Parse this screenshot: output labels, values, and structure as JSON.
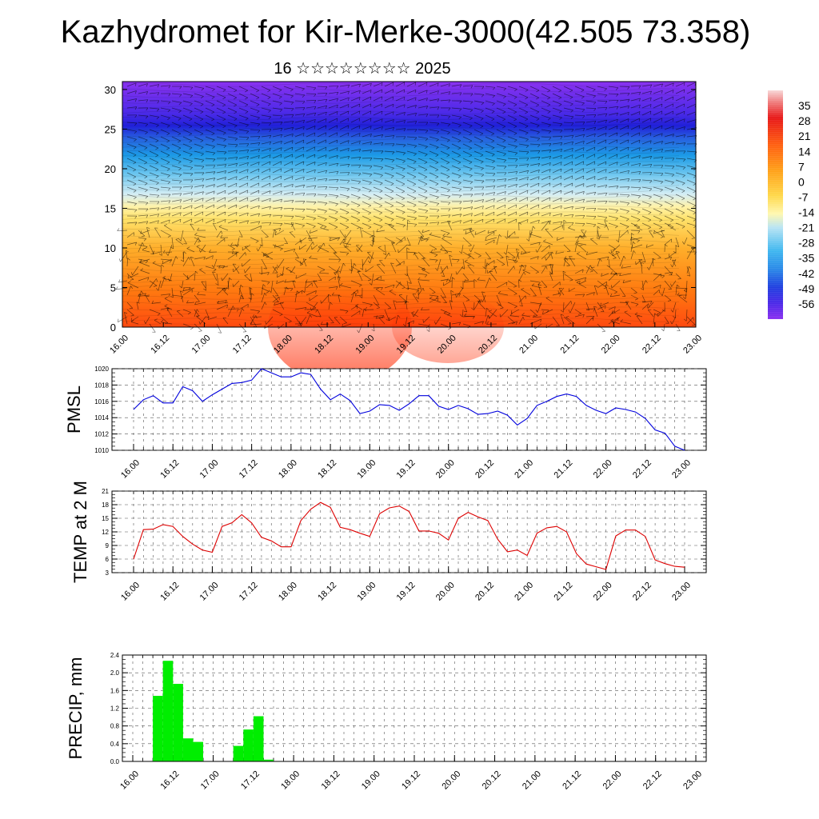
{
  "title": "Kazhydromet for Kir-Merke-3000(42.505 73.358)",
  "subtitle": "16 ☆☆☆☆☆☆☆☆ 2025",
  "chart_data": [
    {
      "type": "heatmap",
      "y_ticks": [
        "0",
        "5",
        "10",
        "15",
        "20",
        "25",
        "30"
      ],
      "x_ticks": [
        "16.00",
        "16.12",
        "17.00",
        "17.12",
        "18.00",
        "18.12",
        "19.00",
        "19.12",
        "20.00",
        "20.12",
        "21.00",
        "21.12",
        "22.00",
        "22.12",
        "23.00"
      ],
      "ylim": [
        0,
        31
      ],
      "colorbar_labels": [
        "35",
        "28",
        "21",
        "14",
        "7",
        "0",
        "-7",
        "-14",
        "-21",
        "-28",
        "-35",
        "-42",
        "-49",
        "-56"
      ],
      "colorbar_range": [
        -63,
        42
      ]
    },
    {
      "type": "line",
      "ylabel": "PMSL",
      "color": "#0000dd",
      "ylim": [
        1010,
        1020
      ],
      "y_ticks": [
        "1010",
        "1012",
        "1014",
        "1016",
        "1018",
        "1020"
      ],
      "x_ticks": [
        "16.00",
        "16.12",
        "17.00",
        "17.12",
        "18.00",
        "18.12",
        "19.00",
        "19.12",
        "20.00",
        "20.12",
        "21.00",
        "21.12",
        "22.00",
        "22.12",
        "23.00"
      ],
      "values": [
        1015.0,
        1016.2,
        1016.7,
        1015.8,
        1015.8,
        1017.8,
        1017.3,
        1016.0,
        1016.8,
        1017.5,
        1018.2,
        1018.3,
        1018.6,
        1020.0,
        1019.5,
        1019.0,
        1019.0,
        1019.5,
        1019.3,
        1017.5,
        1016.2,
        1016.9,
        1016.1,
        1014.5,
        1014.8,
        1015.6,
        1015.5,
        1014.9,
        1015.7,
        1016.7,
        1016.7,
        1015.4,
        1015.0,
        1015.5,
        1015.1,
        1014.4,
        1014.5,
        1014.8,
        1014.3,
        1013.1,
        1013.9,
        1015.5,
        1016.0,
        1016.6,
        1016.9,
        1016.6,
        1015.5,
        1014.9,
        1014.5,
        1015.2,
        1015.0,
        1014.7,
        1013.9,
        1012.5,
        1012.1,
        1010.5,
        1010.0
      ]
    },
    {
      "type": "line",
      "ylabel": "TEMP at 2 M",
      "color": "#dd0000",
      "ylim": [
        3,
        21
      ],
      "y_ticks": [
        "3",
        "6",
        "9",
        "12",
        "15",
        "18",
        "21"
      ],
      "x_ticks": [
        "16.00",
        "16.12",
        "17.00",
        "17.12",
        "18.00",
        "18.12",
        "19.00",
        "19.12",
        "20.00",
        "20.12",
        "21.00",
        "21.12",
        "22.00",
        "22.12",
        "23.00"
      ],
      "values": [
        6.0,
        12.5,
        12.6,
        13.6,
        13.2,
        11.0,
        9.3,
        8.0,
        7.5,
        13.2,
        14.0,
        15.8,
        14.0,
        10.8,
        10.0,
        8.7,
        8.7,
        14.5,
        17.0,
        18.5,
        17.4,
        13.0,
        12.5,
        11.7,
        11.0,
        16.0,
        17.3,
        17.7,
        16.5,
        12.2,
        12.2,
        11.7,
        10.2,
        15.0,
        16.3,
        15.3,
        14.5,
        10.4,
        7.6,
        8.0,
        6.8,
        11.7,
        12.9,
        13.2,
        12.0,
        7.2,
        4.9,
        4.3,
        3.7,
        11.1,
        12.4,
        12.4,
        11.0,
        5.8,
        5.0,
        4.4,
        4.2
      ]
    },
    {
      "type": "bar",
      "ylabel": "PRECIP, mm",
      "color": "#00ee00",
      "ylim": [
        0,
        2.4
      ],
      "y_ticks": [
        "0.0",
        "0.4",
        "0.8",
        "1.2",
        "1.6",
        "2.0",
        "2.4"
      ],
      "x_ticks": [
        "16.00",
        "16.12",
        "17.00",
        "17.12",
        "18.00",
        "18.12",
        "19.00",
        "19.12",
        "20.00",
        "20.12",
        "21.00",
        "21.12",
        "22.00",
        "22.12",
        "23.00"
      ],
      "bars": [
        {
          "start_h": 6,
          "end_h": 9,
          "value": 1.48
        },
        {
          "start_h": 9,
          "end_h": 12,
          "value": 2.27
        },
        {
          "start_h": 12,
          "end_h": 15,
          "value": 1.75
        },
        {
          "start_h": 15,
          "end_h": 18,
          "value": 0.52
        },
        {
          "start_h": 18,
          "end_h": 21,
          "value": 0.44
        },
        {
          "start_h": 30,
          "end_h": 33,
          "value": 0.35
        },
        {
          "start_h": 33,
          "end_h": 36,
          "value": 0.72
        },
        {
          "start_h": 36,
          "end_h": 39,
          "value": 1.02
        },
        {
          "start_h": 39,
          "end_h": 42,
          "value": 0.04
        }
      ]
    }
  ]
}
